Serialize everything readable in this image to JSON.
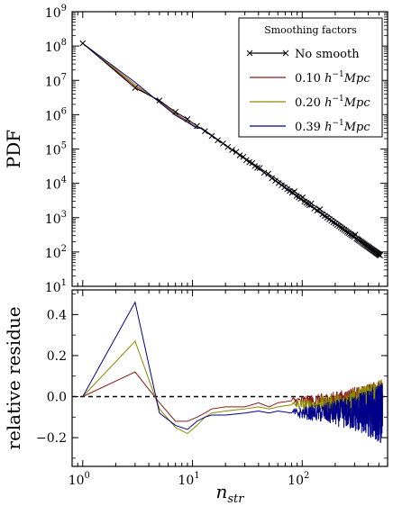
{
  "chart_data": [
    {
      "type": "line",
      "panel": "top",
      "xscale": "log",
      "yscale": "log",
      "xlim": [
        0.8,
        600
      ],
      "ylim": [
        10,
        1000000000
      ],
      "ylabel": "PDF",
      "xlabel": "",
      "ytick_exponents": [
        1,
        2,
        3,
        4,
        5,
        6,
        7,
        8,
        9
      ],
      "legend": {
        "title": "Smoothing factors",
        "placement": "top-right",
        "entries": [
          {
            "label": "No smooth",
            "color": "#000000",
            "marker": "x"
          },
          {
            "label_prefix": "0.10 ",
            "label_unit": "h",
            "label_exp": "−1",
            "label_suffix": "Mpc",
            "color": "#8b1a1a"
          },
          {
            "label_prefix": "0.20 ",
            "label_unit": "h",
            "label_exp": "−1",
            "label_suffix": "Mpc",
            "color": "#8b8b00"
          },
          {
            "label_prefix": "0.39 ",
            "label_unit": "h",
            "label_exp": "−1",
            "label_suffix": "Mpc",
            "color": "#00008b"
          }
        ]
      },
      "power_law": {
        "amplitude": 120000000,
        "slope": -2.28
      },
      "series": [
        {
          "name": "No smooth",
          "color": "#000000",
          "marker": "x",
          "x": [
            1,
            3,
            5,
            7,
            9,
            11,
            13,
            15,
            17,
            19,
            21,
            25,
            29,
            35,
            41,
            49,
            59,
            71,
            85,
            101,
            121,
            145,
            175,
            211,
            255,
            305,
            365,
            440,
            520
          ],
          "y": [
            120000000,
            6000000,
            2600000,
            1200000,
            740000,
            470000,
            330000,
            240000,
            180000,
            145000,
            115000,
            82000,
            59000,
            39000,
            28000,
            19000,
            13000,
            8600,
            5800,
            3900,
            2600,
            1750,
            1160,
            760,
            480,
            320,
            210,
            130,
            100
          ]
        },
        {
          "name": "0.10 h^-1 Mpc",
          "color": "#8b1a1a",
          "x": [
            1,
            3,
            5,
            7,
            9,
            11,
            20,
            50,
            100,
            200,
            400,
            520
          ],
          "y": [
            120000000,
            6700000,
            2450000,
            1080000,
            660000,
            420000,
            125000,
            16500,
            3800,
            780,
            160,
            95
          ]
        },
        {
          "name": "0.20 h^-1 Mpc",
          "color": "#8b8b00",
          "x": [
            1,
            3,
            5,
            7,
            9,
            11,
            20,
            50,
            100,
            200,
            400,
            520
          ],
          "y": [
            120000000,
            7600000,
            2350000,
            1020000,
            620000,
            410000,
            123000,
            16200,
            3750,
            770,
            158,
            92
          ]
        },
        {
          "name": "0.39 h^-1 Mpc",
          "color": "#00008b",
          "x": [
            1,
            3,
            5,
            7,
            9,
            11,
            20,
            50,
            100,
            200,
            400,
            520
          ],
          "y": [
            120000000,
            8800000,
            2300000,
            960000,
            600000,
            400000,
            121000,
            16000,
            3700,
            760,
            155,
            88
          ]
        }
      ]
    },
    {
      "type": "line",
      "panel": "bottom",
      "xscale": "log",
      "xlim": [
        0.8,
        600
      ],
      "ylim": [
        -0.34,
        0.52
      ],
      "xlabel_base": "n",
      "xlabel_sub": "str",
      "ylabel": "relative residue",
      "xtick_exponents": [
        0,
        1,
        2
      ],
      "yticks": [
        "−0.2",
        "0.0",
        "0.2",
        "0.4"
      ],
      "ytick_values": [
        -0.2,
        0.0,
        0.2,
        0.4
      ],
      "zero_line": {
        "y": 0.0,
        "style": "dashed"
      },
      "series": [
        {
          "name": "0.10 h^-1 Mpc",
          "color": "#8b1a1a",
          "x": [
            1,
            3,
            5,
            7,
            9,
            11,
            13,
            15,
            20,
            30,
            40,
            50,
            60,
            80
          ],
          "y": [
            0.0,
            0.12,
            -0.03,
            -0.12,
            -0.12,
            -0.1,
            -0.08,
            -0.06,
            -0.05,
            -0.05,
            -0.03,
            -0.05,
            -0.03,
            -0.02
          ],
          "noise_amp": 0.09
        },
        {
          "name": "0.20 h^-1 Mpc",
          "color": "#8b8b00",
          "x": [
            1,
            3,
            5,
            7,
            9,
            11,
            13,
            15,
            20,
            30,
            40,
            50,
            60,
            80
          ],
          "y": [
            0.0,
            0.27,
            -0.06,
            -0.15,
            -0.18,
            -0.14,
            -0.1,
            -0.08,
            -0.07,
            -0.06,
            -0.05,
            -0.06,
            -0.05,
            -0.04
          ],
          "noise_amp": 0.11
        },
        {
          "name": "0.39 h^-1 Mpc",
          "color": "#00008b",
          "x": [
            1,
            3,
            5,
            7,
            9,
            11,
            13,
            15,
            20,
            30,
            40,
            50,
            60,
            80
          ],
          "y": [
            0.0,
            0.46,
            -0.08,
            -0.14,
            -0.16,
            -0.12,
            -0.1,
            -0.09,
            -0.09,
            -0.08,
            -0.07,
            -0.08,
            -0.07,
            -0.08
          ],
          "noise_amp": 0.13
        }
      ]
    }
  ]
}
